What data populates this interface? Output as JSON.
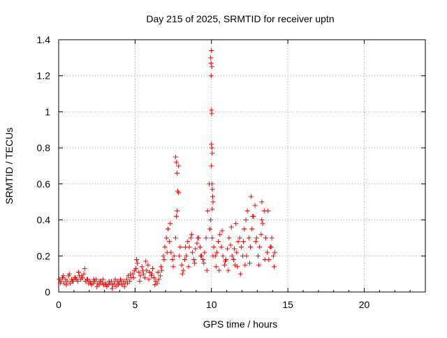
{
  "chart_data": {
    "type": "scatter",
    "title": "Day 215 of 2025, SRMTID for receiver uptn",
    "xlabel": "GPS time / hours",
    "ylabel": "SRMTID / TECUs",
    "xlim": [
      0,
      24
    ],
    "ylim": [
      0,
      1.4
    ],
    "xticks": [
      0,
      5,
      10,
      15,
      20
    ],
    "xtick_labels": [
      "0",
      "5",
      "10",
      "15",
      "20"
    ],
    "yticks": [
      0,
      0.2,
      0.4,
      0.6,
      0.8,
      1.0,
      1.2,
      1.4
    ],
    "ytick_labels": [
      "0",
      "0.2",
      "0.4",
      "0.6",
      "0.8",
      "1",
      "1.2",
      "1.4"
    ],
    "grid": true,
    "marker": "+",
    "color": "#ff0000",
    "series": [
      {
        "name": "SRMTID",
        "x": [
          0.05,
          0.15,
          0.25,
          0.35,
          0.45,
          0.55,
          0.65,
          0.75,
          0.85,
          0.95,
          1.05,
          1.15,
          1.25,
          1.35,
          1.45,
          1.55,
          1.65,
          1.75,
          1.85,
          1.95,
          2.05,
          2.15,
          2.25,
          2.35,
          2.45,
          2.55,
          2.65,
          2.75,
          2.85,
          2.95,
          3.05,
          3.15,
          3.25,
          3.35,
          3.45,
          3.55,
          3.65,
          3.75,
          3.85,
          3.95,
          4.05,
          4.15,
          4.25,
          4.35,
          4.45,
          4.55,
          4.65,
          4.75,
          4.85,
          4.95,
          5.05,
          5.15,
          5.25,
          5.35,
          5.45,
          5.55,
          5.65,
          5.75,
          5.85,
          5.95,
          6.05,
          6.15,
          6.25,
          6.35,
          6.45,
          6.55,
          6.65,
          6.75,
          6.85,
          6.95,
          7.05,
          7.15,
          7.25,
          7.35,
          7.45,
          7.55,
          7.65,
          7.75,
          7.85,
          7.95,
          8.05,
          8.15,
          8.25,
          8.35,
          8.45,
          8.55,
          8.65,
          8.75,
          8.85,
          8.95,
          9.05,
          9.15,
          9.25,
          9.35,
          9.45,
          9.55,
          9.65,
          9.75,
          9.85,
          9.95,
          10.05,
          10.15,
          10.25,
          10.35,
          10.45,
          10.55,
          10.65,
          10.75,
          10.85,
          10.95,
          11.05,
          11.15,
          11.25,
          11.35,
          11.45,
          11.55,
          11.65,
          11.75,
          11.85,
          11.95,
          12.05,
          12.15,
          12.25,
          12.35,
          12.45,
          12.55,
          12.65,
          12.75,
          12.85,
          12.95,
          13.05,
          13.15,
          13.25,
          13.35,
          13.45,
          13.55,
          13.65,
          13.75,
          13.85,
          13.95,
          14.05,
          14.15,
          0.1,
          0.3,
          0.5,
          0.7,
          0.9,
          1.1,
          1.3,
          1.5,
          1.7,
          1.9,
          2.1,
          2.3,
          2.5,
          2.7,
          2.9,
          3.1,
          3.3,
          3.5,
          3.7,
          3.9,
          4.1,
          4.3,
          4.5,
          4.7,
          4.9,
          5.1,
          5.3,
          5.5,
          5.7,
          5.9,
          6.1,
          6.3,
          6.5,
          6.7,
          6.9,
          7.1,
          7.3,
          7.5,
          7.7,
          7.9,
          8.1,
          8.3,
          8.5,
          8.7,
          8.9,
          9.1,
          9.3,
          9.5,
          9.7,
          9.9,
          10.1,
          10.3,
          10.5,
          10.7,
          10.9,
          11.1,
          11.3,
          11.5,
          11.7,
          11.9,
          12.1,
          12.3,
          12.5,
          12.7,
          12.9,
          13.1,
          13.3,
          13.5,
          13.7,
          13.9,
          14.1,
          7.65,
          7.7,
          7.75,
          7.8,
          7.85,
          9.95,
          9.97,
          9.98,
          10.0,
          10.02,
          10.0,
          10.03,
          10.05,
          10.0,
          10.02,
          10.04,
          10.06,
          10.08,
          10.1,
          10.0,
          10.05,
          12.6,
          13.3,
          12.2,
          11.6
        ],
        "y": [
          0.07,
          0.06,
          0.08,
          0.05,
          0.07,
          0.06,
          0.09,
          0.05,
          0.07,
          0.06,
          0.08,
          0.07,
          0.06,
          0.09,
          0.07,
          0.08,
          0.1,
          0.06,
          0.07,
          0.05,
          0.06,
          0.04,
          0.05,
          0.06,
          0.07,
          0.05,
          0.04,
          0.06,
          0.05,
          0.04,
          0.05,
          0.03,
          0.04,
          0.05,
          0.06,
          0.04,
          0.05,
          0.03,
          0.06,
          0.05,
          0.07,
          0.04,
          0.06,
          0.05,
          0.07,
          0.09,
          0.06,
          0.08,
          0.1,
          0.12,
          0.13,
          0.16,
          0.11,
          0.09,
          0.14,
          0.1,
          0.08,
          0.12,
          0.15,
          0.11,
          0.09,
          0.13,
          0.08,
          0.06,
          0.05,
          0.07,
          0.09,
          0.12,
          0.2,
          0.25,
          0.3,
          0.35,
          0.28,
          0.22,
          0.18,
          0.2,
          0.3,
          0.45,
          0.55,
          0.25,
          0.15,
          0.12,
          0.18,
          0.2,
          0.28,
          0.25,
          0.3,
          0.22,
          0.18,
          0.24,
          0.27,
          0.3,
          0.25,
          0.2,
          0.18,
          0.22,
          0.3,
          0.45,
          0.6,
          0.4,
          0.3,
          0.25,
          0.2,
          0.22,
          0.28,
          0.32,
          0.25,
          0.2,
          0.15,
          0.18,
          0.24,
          0.3,
          0.26,
          0.2,
          0.18,
          0.15,
          0.22,
          0.28,
          0.3,
          0.25,
          0.2,
          0.35,
          0.4,
          0.45,
          0.3,
          0.25,
          0.35,
          0.42,
          0.48,
          0.3,
          0.2,
          0.25,
          0.32,
          0.38,
          0.45,
          0.3,
          0.22,
          0.18,
          0.25,
          0.3,
          0.2,
          0.22,
          0.05,
          0.09,
          0.04,
          0.1,
          0.06,
          0.08,
          0.11,
          0.09,
          0.13,
          0.07,
          0.05,
          0.07,
          0.03,
          0.06,
          0.07,
          0.04,
          0.06,
          0.02,
          0.07,
          0.04,
          0.06,
          0.03,
          0.05,
          0.1,
          0.08,
          0.18,
          0.06,
          0.12,
          0.17,
          0.07,
          0.1,
          0.04,
          0.11,
          0.14,
          0.18,
          0.22,
          0.38,
          0.14,
          0.42,
          0.2,
          0.1,
          0.25,
          0.14,
          0.32,
          0.16,
          0.3,
          0.2,
          0.16,
          0.12,
          0.35,
          0.2,
          0.14,
          0.12,
          0.34,
          0.17,
          0.12,
          0.36,
          0.24,
          0.14,
          0.1,
          0.28,
          0.2,
          0.16,
          0.42,
          0.28,
          0.15,
          0.4,
          0.18,
          0.45,
          0.25,
          0.14,
          0.75,
          0.72,
          0.66,
          0.56,
          0.7,
          1.3,
          1.27,
          1.2,
          1.01,
          0.99,
          0.82,
          0.8,
          0.77,
          1.34,
          1.25,
          0.6,
          0.57,
          0.53,
          0.5,
          0.7,
          0.46,
          0.53,
          0.5,
          0.15,
          0.38
        ]
      }
    ]
  }
}
